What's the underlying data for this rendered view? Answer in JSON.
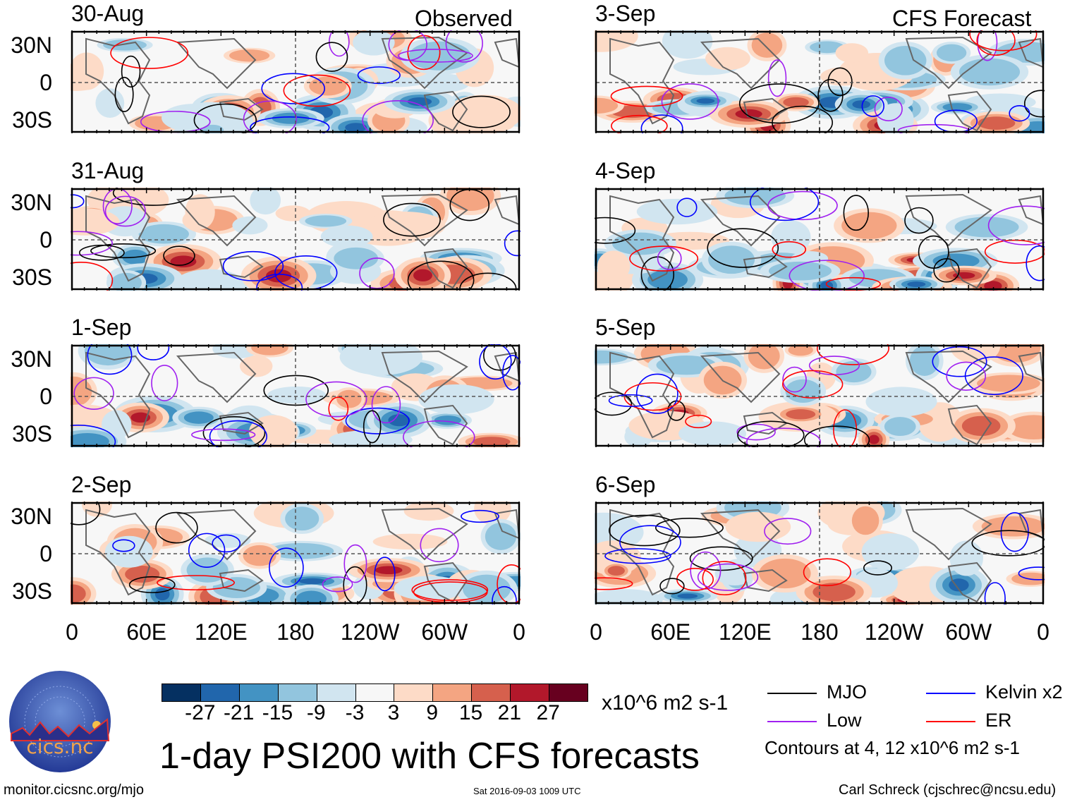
{
  "header": {
    "observed_label": "Observed",
    "forecast_label": "CFS Forecast"
  },
  "chart_data": {
    "type": "heatmap",
    "title": "1-day PSI200 with CFS forecasts",
    "variable": "PSI200 anomaly",
    "units": "x10^6 m2 s-1",
    "columns": [
      {
        "name": "Observed",
        "panels": [
          "30-Aug",
          "31-Aug",
          "1-Sep",
          "2-Sep"
        ]
      },
      {
        "name": "CFS Forecast",
        "panels": [
          "3-Sep",
          "4-Sep",
          "5-Sep",
          "6-Sep"
        ]
      }
    ],
    "y_ticks": [
      "30N",
      "0",
      "30S"
    ],
    "x_ticks": [
      "0",
      "60E",
      "120E",
      "180",
      "120W",
      "60W",
      "0"
    ],
    "colorbar": {
      "levels": [
        "-27",
        "-21",
        "-15",
        "-9",
        "-3",
        "3",
        "9",
        "15",
        "21",
        "27"
      ],
      "colors": [
        "#053061",
        "#2166ac",
        "#4393c3",
        "#92c5de",
        "#d1e5f0",
        "#f7f7f7",
        "#fddbc7",
        "#f4a582",
        "#d6604d",
        "#b2182b",
        "#67001f"
      ],
      "units": "x10^6 m2 s-1"
    },
    "contour_legend": [
      {
        "label": "MJO",
        "color": "#000000"
      },
      {
        "label": "Kelvin x2",
        "color": "#0000ff"
      },
      {
        "label": "Low",
        "color": "#a020f0"
      },
      {
        "label": "ER",
        "color": "#ff0000"
      }
    ],
    "contour_note": "Contours at 4, 12 x10^6 m2 s-1"
  },
  "logo": {
    "text": "cics.nc",
    "ring_text": "Cooperative Institute for Climate and Satellites"
  },
  "footer": {
    "url": "monitor.cicsnc.org/mjo",
    "timestamp": "Sat 2016-09-03 1009 UTC",
    "author": "Carl Schreck (cjschrec@ncsu.edu)"
  }
}
